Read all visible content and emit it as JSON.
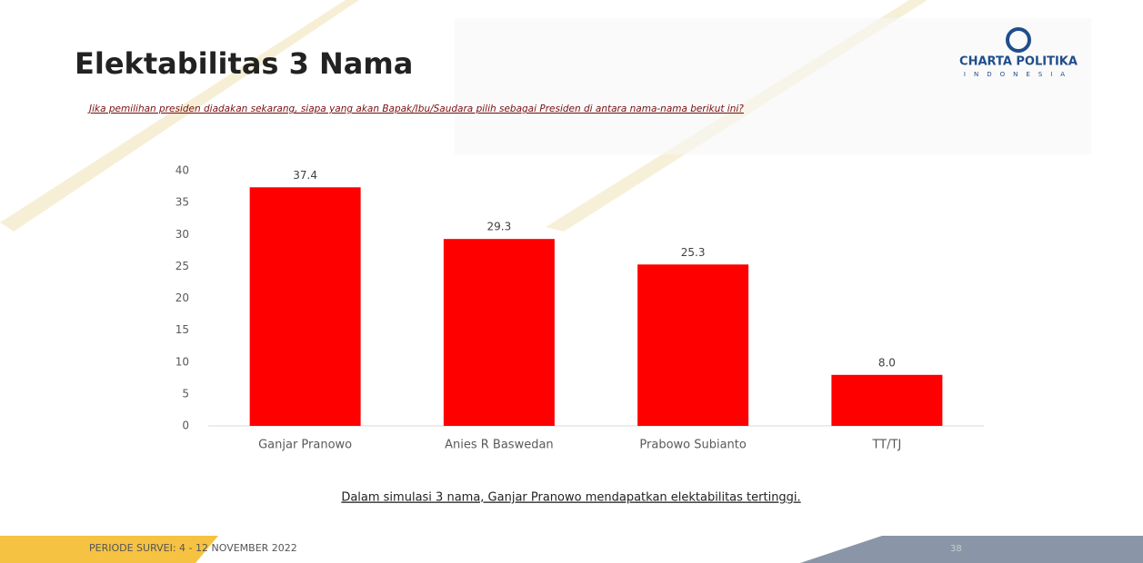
{
  "chart_data": {
    "type": "bar",
    "title": "Elektabilitas 3 Nama",
    "subtitle": "Jika pemilihan presiden diadakan sekarang, siapa yang akan Bapak/Ibu/Saudara pilih sebagai Presiden di antara nama-nama berikut ini?",
    "categories": [
      "Ganjar Pranowo",
      "Anies R Baswedan",
      "Prabowo Subianto",
      "TT/TJ"
    ],
    "values": [
      37.4,
      29.3,
      25.3,
      8.0
    ],
    "value_labels": [
      "37.4",
      "29.3",
      "25.3",
      "8.0"
    ],
    "color": "#ff0000",
    "ylim": [
      0,
      40
    ],
    "yticks": [
      0,
      5,
      10,
      15,
      20,
      25,
      30,
      35,
      40
    ],
    "grid": false
  },
  "note": "Dalam simulasi 3 nama, Ganjar Pranowo mendapatkan elektabilitas tertinggi.",
  "footer": {
    "period": "PERIODE SURVEI: 4 - 12 NOVEMBER 2022",
    "page": "38"
  },
  "logo": {
    "name": "CHARTA POLITIKA",
    "country": "INDONESIA"
  }
}
